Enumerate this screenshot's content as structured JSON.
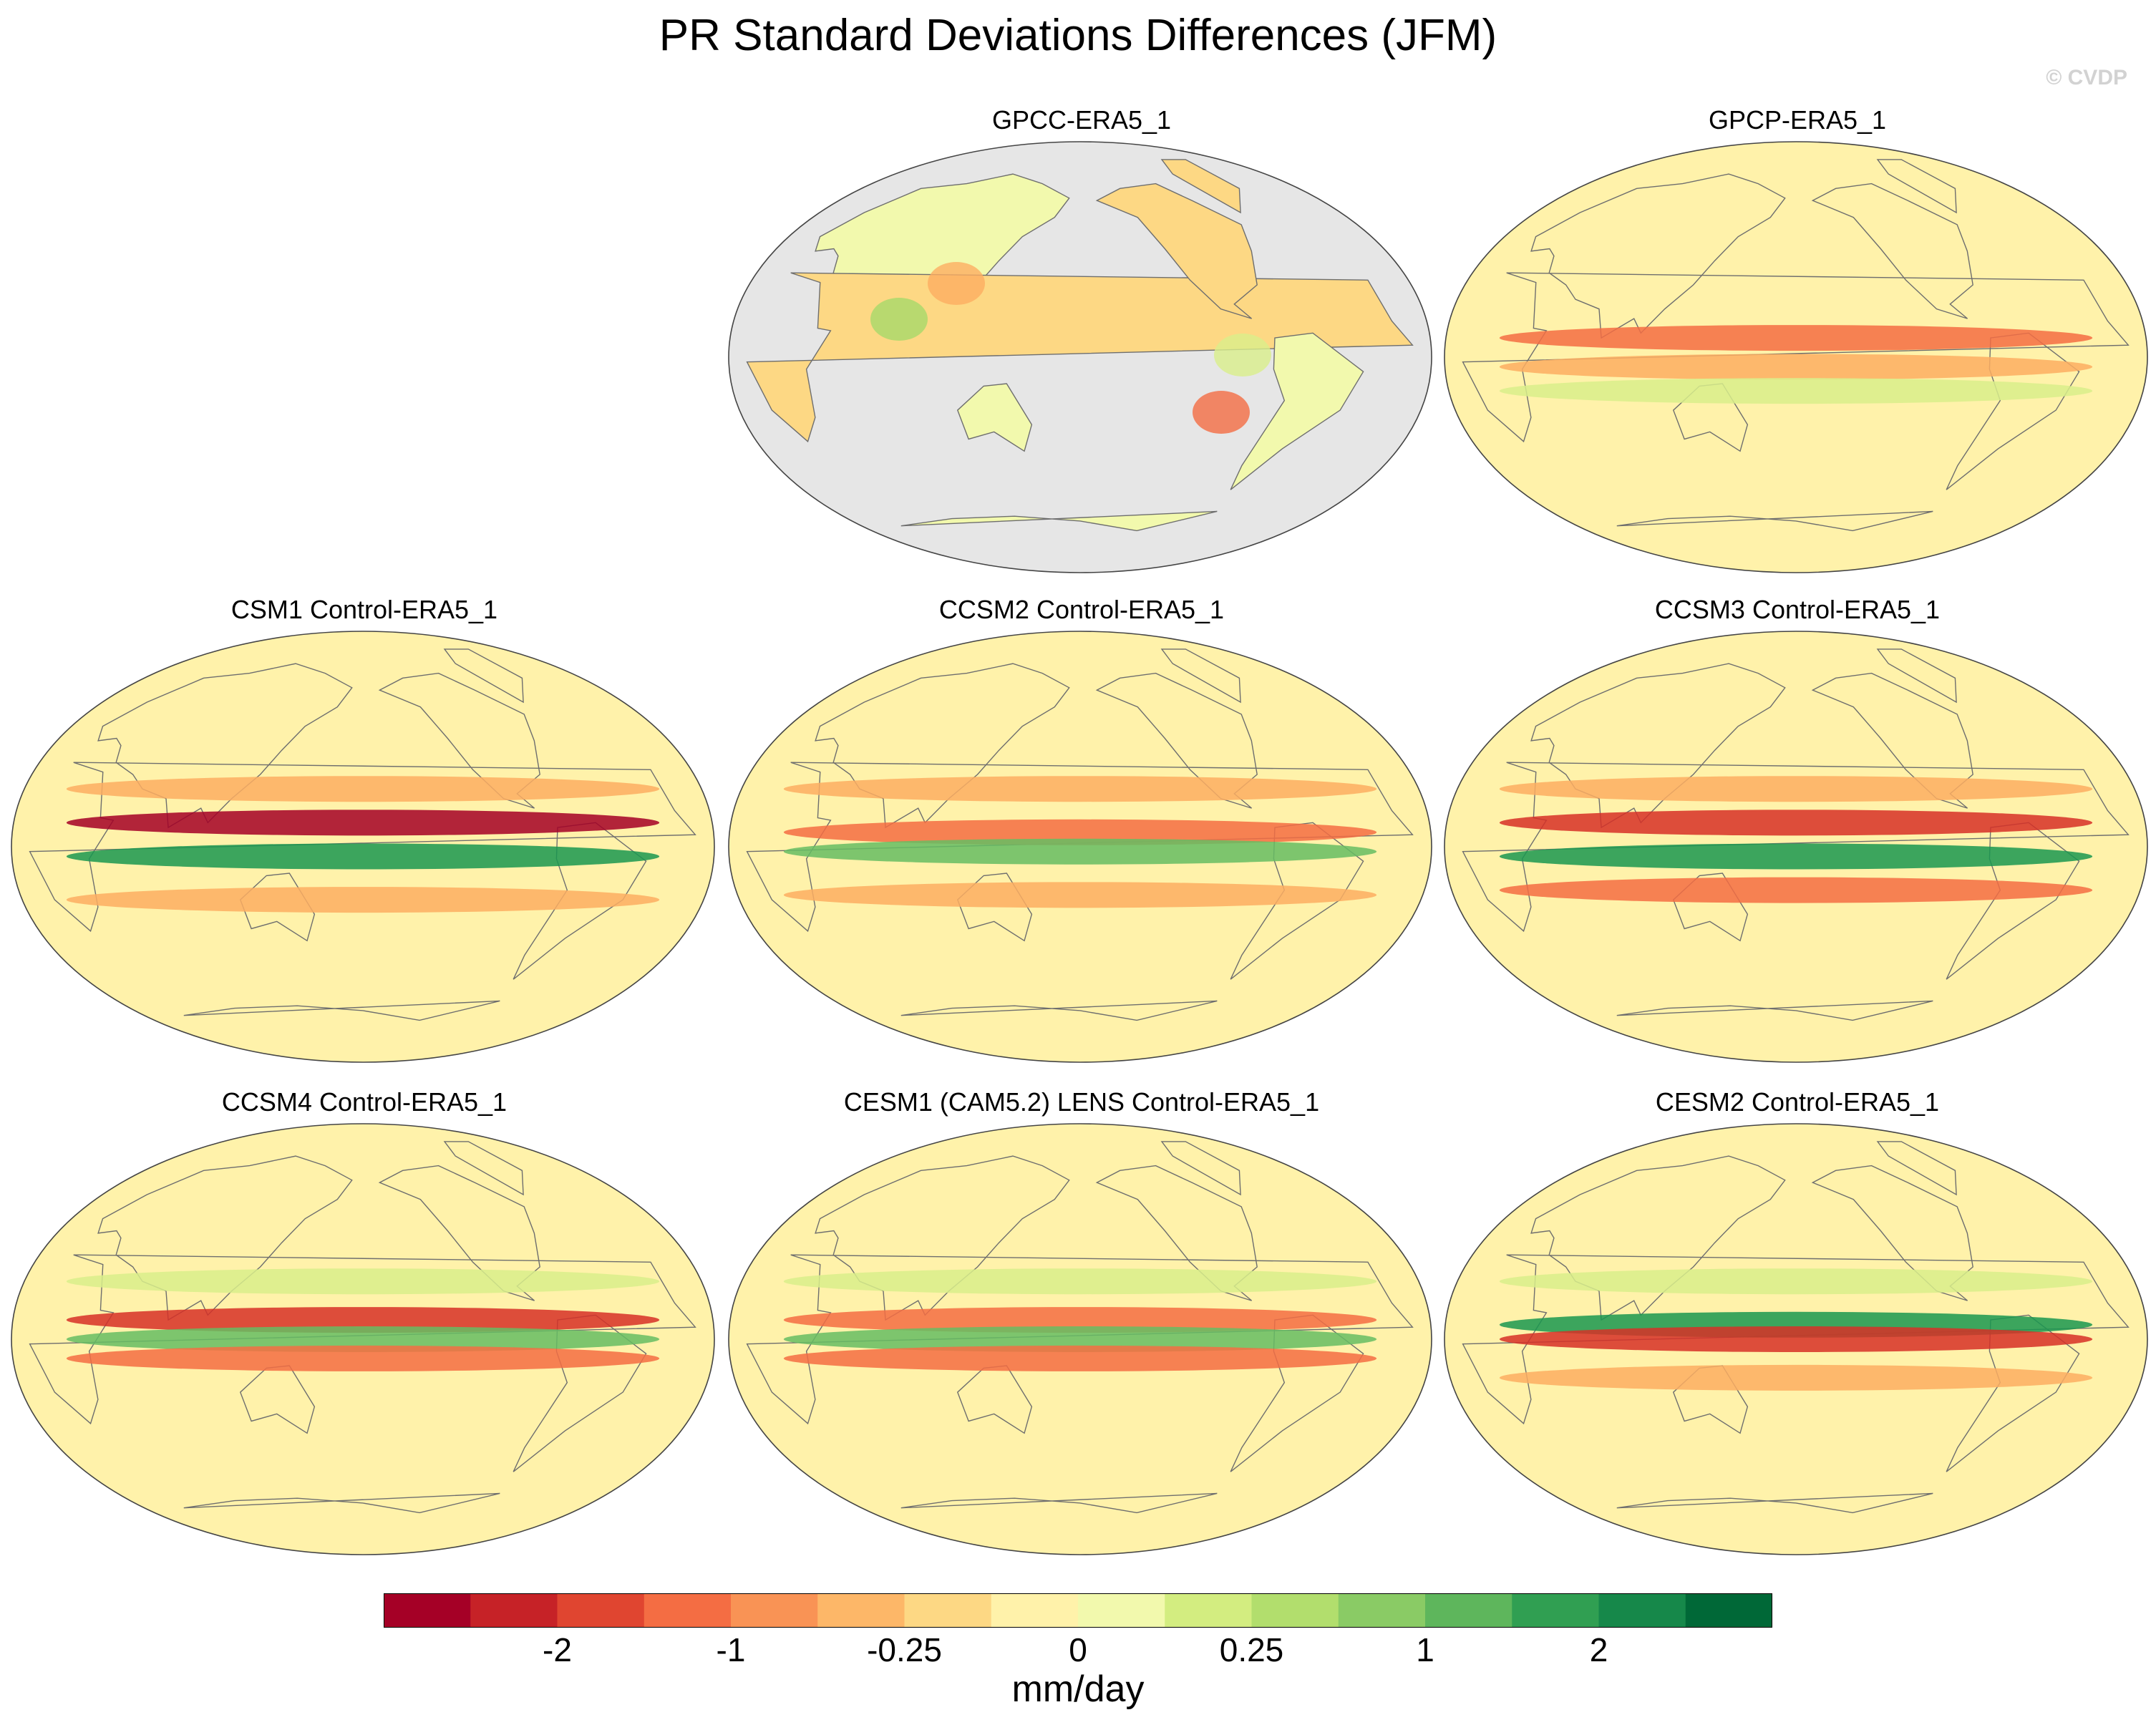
{
  "title": "PR Standard Deviations Differences (JFM)",
  "copyright": "© CVDP",
  "panels": [
    {
      "title": "GPCC-ERA5_1",
      "land_only": true,
      "bands": [],
      "blobs": [
        {
          "color": "#d9ef8b"
        },
        {
          "color": "#f46d43"
        },
        {
          "color": "#a6d96a"
        },
        {
          "color": "#fdae61"
        }
      ]
    },
    {
      "title": "GPCP-ERA5_1",
      "land_only": false,
      "bands": [
        {
          "lat": -4,
          "color": "#fdae61"
        },
        {
          "lat": 8,
          "color": "#f46d43"
        },
        {
          "lat": -14,
          "color": "#d9ef8b"
        }
      ],
      "blobs": []
    },
    {
      "title": "CSM1 Control-ERA5_1",
      "land_only": false,
      "bands": [
        {
          "lat": 10,
          "color": "#a50026"
        },
        {
          "lat": -4,
          "color": "#1a9850"
        },
        {
          "lat": -22,
          "color": "#fdae61"
        },
        {
          "lat": 24,
          "color": "#fdae61"
        }
      ],
      "blobs": []
    },
    {
      "title": "CCSM2 Control-ERA5_1",
      "land_only": false,
      "bands": [
        {
          "lat": 6,
          "color": "#f46d43"
        },
        {
          "lat": -2,
          "color": "#66bd63"
        },
        {
          "lat": -20,
          "color": "#fdae61"
        },
        {
          "lat": 24,
          "color": "#fdae61"
        }
      ],
      "blobs": []
    },
    {
      "title": "CCSM3 Control-ERA5_1",
      "land_only": false,
      "bands": [
        {
          "lat": 10,
          "color": "#d73027"
        },
        {
          "lat": -4,
          "color": "#1a9850"
        },
        {
          "lat": -18,
          "color": "#f46d43"
        },
        {
          "lat": 24,
          "color": "#fdae61"
        }
      ],
      "blobs": []
    },
    {
      "title": "CCSM4 Control-ERA5_1",
      "land_only": false,
      "bands": [
        {
          "lat": 8,
          "color": "#d73027"
        },
        {
          "lat": 0,
          "color": "#66bd63"
        },
        {
          "lat": -8,
          "color": "#f46d43"
        },
        {
          "lat": 24,
          "color": "#d9ef8b"
        }
      ],
      "blobs": []
    },
    {
      "title": "CESM1 (CAM5.2) LENS Control-ERA5_1",
      "land_only": false,
      "bands": [
        {
          "lat": 8,
          "color": "#f46d43"
        },
        {
          "lat": 0,
          "color": "#66bd63"
        },
        {
          "lat": -8,
          "color": "#f46d43"
        },
        {
          "lat": 24,
          "color": "#d9ef8b"
        }
      ],
      "blobs": []
    },
    {
      "title": "CESM2 Control-ERA5_1",
      "land_only": false,
      "bands": [
        {
          "lat": 6,
          "color": "#1a9850"
        },
        {
          "lat": 0,
          "color": "#d73027"
        },
        {
          "lat": -16,
          "color": "#fdae61"
        },
        {
          "lat": 24,
          "color": "#d9ef8b"
        }
      ],
      "blobs": []
    }
  ],
  "colorbar": {
    "colors": [
      "#a50026",
      "#c62227",
      "#e04530",
      "#f46d43",
      "#f99355",
      "#fdb768",
      "#fdd884",
      "#fff2aa",
      "#f2f9ad",
      "#d3ed80",
      "#b2de6d",
      "#8acb65",
      "#5eb65c",
      "#309f52",
      "#16884a",
      "#006837"
    ],
    "labels": [
      "-2",
      "-1",
      "-0.25",
      "0",
      "0.25",
      "1",
      "2"
    ],
    "units": "mm/day"
  },
  "colors": {
    "ocean_land_only": "#e6e6e6",
    "neutral": "#fff2aa",
    "coast": "#6e6e6e"
  }
}
